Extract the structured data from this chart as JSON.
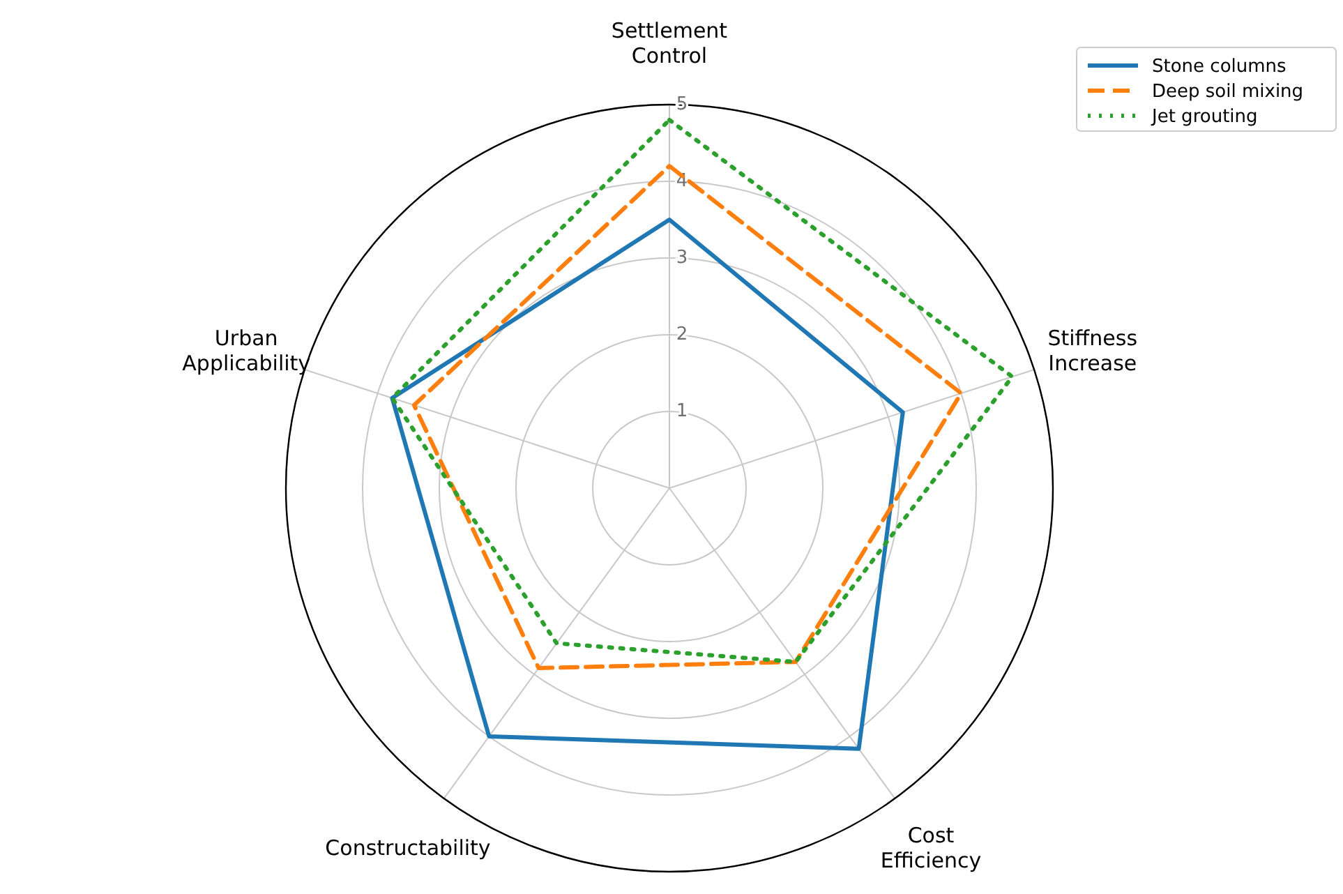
{
  "chart_data": {
    "type": "radar",
    "categories": [
      "Settlement\nControl",
      "Stiffness\nIncrease",
      "Cost\nEfficiency",
      "Constructability",
      "Urban\nApplicability"
    ],
    "ylim": [
      0,
      5
    ],
    "yticks": [
      1,
      2,
      3,
      4,
      5
    ],
    "grid": true,
    "legend": "top right",
    "series": [
      {
        "name": "Stone columns",
        "color": "#1f77b4",
        "line_style": "solid",
        "values": [
          3.5,
          3.2,
          4.2,
          4.0,
          3.8
        ]
      },
      {
        "name": "Deep soil mixing",
        "color": "#ff7f0e",
        "line_style": "dashed",
        "values": [
          4.2,
          4.0,
          2.8,
          2.9,
          3.5
        ]
      },
      {
        "name": "Jet grouting",
        "color": "#2ca02c",
        "line_style": "dotted",
        "values": [
          4.8,
          4.7,
          2.8,
          2.5,
          3.8
        ]
      }
    ]
  }
}
